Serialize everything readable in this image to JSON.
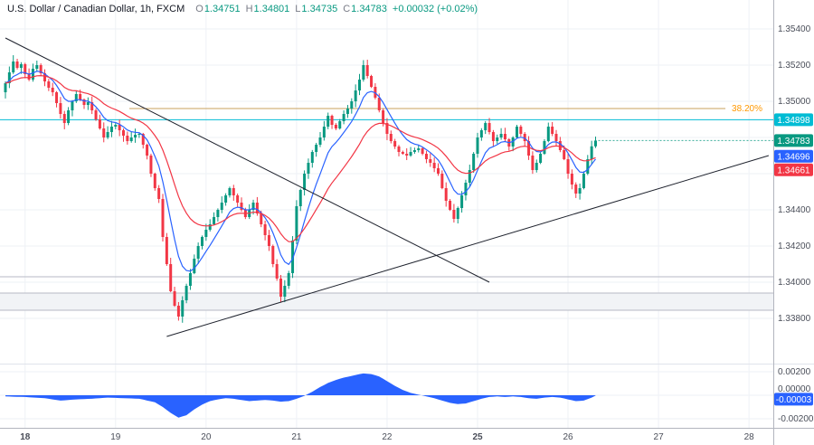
{
  "header": {
    "symbol_title": "U.S. Dollar / Canadian Dollar, 1h, FXCM",
    "ohlc": {
      "o_label": "O",
      "o_value": "1.34751",
      "h_label": "H",
      "h_value": "1.34801",
      "l_label": "L",
      "l_value": "1.34735",
      "c_label": "C",
      "c_value": "1.34783",
      "change": "+0.00032 (+0.02%)"
    }
  },
  "colors": {
    "up": "#089981",
    "down": "#f23645",
    "ma_fast": "#2962ff",
    "ma_slow": "#f23645",
    "alert": "#00bcd4",
    "fib_line": "#c9a15e",
    "fib_label": "#ff9800",
    "trendline": "#1e222d",
    "indicator_fill": "#2962ff",
    "grid": "#eef1f6",
    "axis_border": "#b2b5be",
    "axis_text": "#4a4e59",
    "zone_fill": "#f1f3f6",
    "zone_border": "#b7bac4",
    "background": "#ffffff"
  },
  "price_axis": {
    "ticks": [
      {
        "label": "1.35400",
        "price": 1.354
      },
      {
        "label": "1.35200",
        "price": 1.352
      },
      {
        "label": "1.35000",
        "price": 1.35
      },
      {
        "label": "1.34400",
        "price": 1.344
      },
      {
        "label": "1.34200",
        "price": 1.342
      },
      {
        "label": "1.34000",
        "price": 1.34
      },
      {
        "label": "1.33800",
        "price": 1.338
      }
    ],
    "badges": [
      {
        "role": "alert",
        "label": "1.34898",
        "price": 1.34898,
        "color": "#00bcd4"
      },
      {
        "role": "last",
        "label": "1.34783",
        "price": 1.34783,
        "color": "#089981"
      },
      {
        "role": "ma-fast",
        "label": "1.34696",
        "price": 1.34696,
        "color": "#2962ff"
      },
      {
        "role": "ma-slow",
        "label": "1.34661",
        "price": 1.34661,
        "color": "#f23645"
      }
    ]
  },
  "time_axis": {
    "labels": [
      {
        "text": "18",
        "i": 5,
        "bold": true
      },
      {
        "text": "19",
        "i": 28,
        "bold": false
      },
      {
        "text": "20",
        "i": 51,
        "bold": false
      },
      {
        "text": "21",
        "i": 74,
        "bold": false
      },
      {
        "text": "22",
        "i": 97,
        "bold": false
      },
      {
        "text": "25",
        "i": 120,
        "bold": true
      },
      {
        "text": "26",
        "i": 143,
        "bold": false
      },
      {
        "text": "27",
        "i": 166,
        "bold": false
      },
      {
        "text": "28",
        "i": 189,
        "bold": false
      }
    ]
  },
  "chart_data": {
    "type": "candlestick",
    "symbol_description": "U.S. Dollar / Canadian Dollar",
    "timeframe": "1h",
    "exchange": "FXCM",
    "ylim": [
      1.3356,
      1.3556
    ],
    "first_open": 1.3505,
    "closes": [
      1.351,
      1.3516,
      1.3522,
      1.35185,
      1.35205,
      1.3515,
      1.3512,
      1.3518,
      1.352,
      1.35155,
      1.3511,
      1.35075,
      1.3505,
      1.3499,
      1.3493,
      1.3488,
      1.3495,
      1.35,
      1.3504,
      1.3501,
      1.3498,
      1.34995,
      1.3495,
      1.349,
      1.3485,
      1.348,
      1.3483,
      1.3486,
      1.3487,
      1.3484,
      1.3481,
      1.3478,
      1.348,
      1.34815,
      1.3482,
      1.3476,
      1.347,
      1.346,
      1.3452,
      1.3446,
      1.3425,
      1.341,
      1.3395,
      1.3387,
      1.3381,
      1.339,
      1.3398,
      1.3405,
      1.3413,
      1.342,
      1.3425,
      1.3429,
      1.3432,
      1.3436,
      1.344,
      1.3444,
      1.3448,
      1.3452,
      1.3448,
      1.3444,
      1.344,
      1.3436,
      1.344,
      1.3444,
      1.3438,
      1.3432,
      1.3426,
      1.342,
      1.341,
      1.3402,
      1.3392,
      1.3398,
      1.3405,
      1.3423,
      1.3442,
      1.3451,
      1.346,
      1.3466,
      1.3472,
      1.3476,
      1.348,
      1.3486,
      1.3492,
      1.3487,
      1.3485,
      1.3489,
      1.3493,
      1.3496,
      1.35,
      1.3506,
      1.3512,
      1.352,
      1.3514,
      1.3508,
      1.3502,
      1.3495,
      1.3488,
      1.3482,
      1.3478,
      1.3475,
      1.3472,
      1.3471,
      1.347,
      1.3472,
      1.3473,
      1.3474,
      1.3471,
      1.3468,
      1.3466,
      1.3463,
      1.346,
      1.3452,
      1.3445,
      1.344,
      1.3435,
      1.3441,
      1.3448,
      1.3455,
      1.3462,
      1.3471,
      1.348,
      1.3484,
      1.3488,
      1.3483,
      1.3478,
      1.348,
      1.3482,
      1.3479,
      1.3475,
      1.348,
      1.3486,
      1.3482,
      1.3478,
      1.347,
      1.3462,
      1.3466,
      1.3471,
      1.3478,
      1.3486,
      1.3482,
      1.3478,
      1.3473,
      1.3468,
      1.346,
      1.3454,
      1.3449,
      1.3452,
      1.346,
      1.3468,
      1.34751,
      1.34783
    ],
    "overlays": {
      "fib_level": {
        "label": "38.20%",
        "price": 1.3496,
        "from_i": 31.5,
        "to_i": 183
      },
      "alert_line": {
        "price": 1.34898
      },
      "support_line": {
        "price": 1.3403
      },
      "support_zone": {
        "top": 1.3394,
        "bottom": 1.33845
      },
      "trendlines": [
        {
          "name": "descending",
          "from": {
            "i": 0,
            "price": 1.3535
          },
          "to": {
            "i": 123,
            "price": 1.34
          }
        },
        {
          "name": "ascending",
          "from": {
            "i": 41,
            "price": 1.337
          },
          "to": {
            "i": 194,
            "price": 1.347
          }
        }
      ]
    },
    "indicator": {
      "type": "area",
      "range": [
        -0.002,
        0.002
      ],
      "ticks": [
        {
          "label": "0.00200",
          "value": 0.002
        },
        {
          "label": "0.00000",
          "value": 0
        },
        {
          "label": "-0.00200",
          "value": -0.002
        }
      ],
      "badge": {
        "label": "-0.00003",
        "value": -3e-05
      },
      "values": [
        -0.0001,
        -0.00011,
        -0.00012,
        -0.00013,
        -0.00014,
        -0.00015,
        -0.00017,
        -0.00019,
        -0.00021,
        -0.00023,
        -0.00025,
        -0.0003,
        -0.00035,
        -0.0004,
        -0.00045,
        -0.00043,
        -0.0004,
        -0.00038,
        -0.00035,
        -0.00034,
        -0.00032,
        -0.00031,
        -0.0003,
        -0.00027,
        -0.00025,
        -0.00022,
        -0.0002,
        -0.00021,
        -0.00022,
        -0.00024,
        -0.00025,
        -0.00026,
        -0.00027,
        -0.00029,
        -0.0003,
        -0.00037,
        -0.00045,
        -0.00052,
        -0.0006,
        -0.0008,
        -0.001,
        -0.00125,
        -0.0015,
        -0.0017,
        -0.0019,
        -0.0018,
        -0.0017,
        -0.00145,
        -0.0012,
        -0.001,
        -0.0008,
        -0.00065,
        -0.0005,
        -0.00042,
        -0.00035,
        -0.0003,
        -0.00025,
        -0.00027,
        -0.0003,
        -0.00035,
        -0.0004,
        -0.00045,
        -0.0005,
        -0.00047,
        -0.00045,
        -0.00042,
        -0.0004,
        -0.00042,
        -0.00045,
        -0.0005,
        -0.00055,
        -0.00052,
        -0.0005,
        -0.0004,
        -0.0003,
        -0.00017,
        -5e-05,
        0.00012,
        0.0003,
        0.0005,
        0.0007,
        0.00087,
        0.00105,
        0.00117,
        0.0013,
        0.0014,
        0.0015,
        0.00157,
        0.00165,
        0.00172,
        0.0018,
        0.00185,
        0.00182,
        0.0018,
        0.0017,
        0.0016,
        0.0014,
        0.0012,
        0.001,
        0.0008,
        0.00062,
        0.00045,
        0.00032,
        0.0002,
        0.00012,
        5e-05,
        -2e-05,
        -0.0001,
        -0.00017,
        -0.00025,
        -0.00035,
        -0.00045,
        -0.00055,
        -0.00065,
        -0.0007,
        -0.00075,
        -0.00072,
        -0.0007,
        -0.0006,
        -0.0005,
        -0.0004,
        -0.0003,
        -0.00022,
        -0.00015,
        -0.00012,
        -0.0001,
        -0.00012,
        -0.00015,
        -0.00012,
        -0.0001,
        -0.00012,
        -0.00015,
        -0.0002,
        -0.00025,
        -0.00028,
        -0.0003,
        -0.00025,
        -0.0002,
        -0.00017,
        -0.00015,
        -0.00017,
        -0.0002,
        -0.00027,
        -0.00035,
        -0.00042,
        -0.0005,
        -0.00048,
        -0.00045,
        -0.00032,
        -0.0002,
        -3e-05
      ]
    }
  }
}
